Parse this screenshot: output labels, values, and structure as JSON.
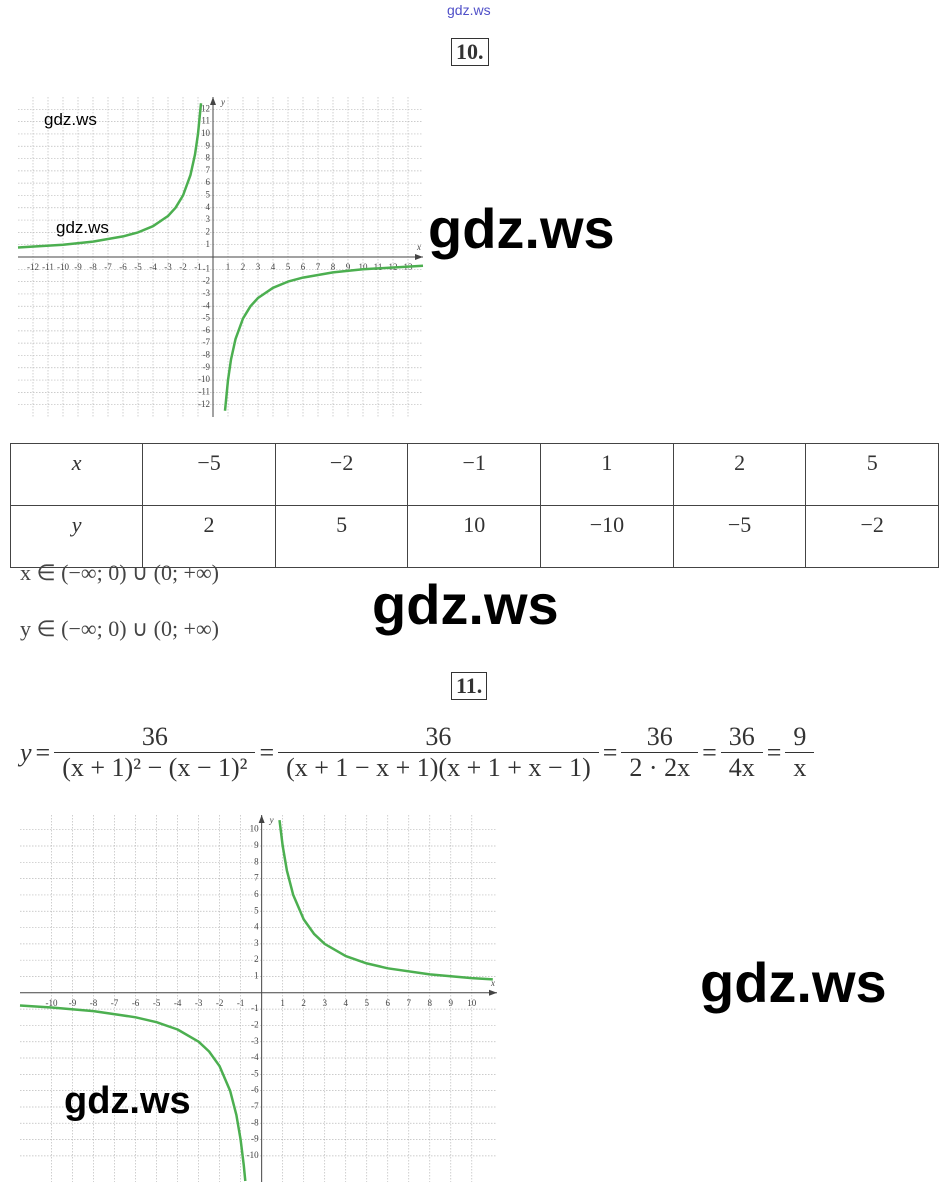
{
  "header": {
    "site": "gdz.ws"
  },
  "watermarks": [
    "gdz.ws",
    "gdz.ws",
    "gdz.ws",
    "gdz.ws",
    "gdz.ws",
    "gdz.ws"
  ],
  "task10": {
    "number": "10.",
    "graph": {
      "x_label": "x",
      "y_label": "y",
      "xlim": [
        -13,
        14
      ],
      "ylim": [
        -13,
        13
      ],
      "xticks": [
        -12,
        -11,
        -10,
        -9,
        -8,
        -7,
        -6,
        -5,
        -4,
        -3,
        -2,
        -1,
        1,
        2,
        3,
        4,
        5,
        6,
        7,
        8,
        9,
        10,
        11,
        12,
        13
      ],
      "yticks": [
        -12,
        -11,
        -10,
        -9,
        -8,
        -7,
        -6,
        -5,
        -4,
        -3,
        -2,
        -1,
        1,
        2,
        3,
        4,
        5,
        6,
        7,
        8,
        9,
        10,
        11,
        12
      ],
      "color": "#4caf50",
      "branches": [
        {
          "x": [
            -13,
            -10,
            -8,
            -6,
            -5,
            -4,
            -3,
            -2.5,
            -2,
            -1.5,
            -1.2,
            -1,
            -0.8
          ],
          "y": [
            0.77,
            1,
            1.25,
            1.67,
            2,
            2.5,
            3.33,
            4,
            5,
            6.67,
            8.33,
            10,
            12.5
          ]
        },
        {
          "x": [
            0.8,
            1,
            1.2,
            1.5,
            2,
            2.5,
            3,
            4,
            5,
            6,
            8,
            10,
            14
          ],
          "y": [
            -12.5,
            -10,
            -8.33,
            -6.67,
            -5,
            -4,
            -3.33,
            -2.5,
            -2,
            -1.67,
            -1.25,
            -1,
            -0.71
          ]
        }
      ]
    },
    "table": {
      "rows": [
        [
          "x",
          "−5",
          "−2",
          "−1",
          "1",
          "2",
          "5"
        ],
        [
          "y",
          "2",
          "5",
          "10",
          "−10",
          "−5",
          "−2"
        ]
      ]
    },
    "domain": "x ∈ (−∞; 0) ∪ (0;  +∞)",
    "range": "y ∈ (−∞; 0) ∪ (0; +∞)"
  },
  "task11": {
    "number": "11.",
    "formula": {
      "lhs": "y",
      "equals": "=",
      "fractions": [
        {
          "num": "36",
          "den": "(x + 1)² − (x − 1)²"
        },
        {
          "num": "36",
          "den": "(x + 1 − x + 1)(x + 1 + x − 1)"
        },
        {
          "num": "36",
          "den": "2 · 2x"
        },
        {
          "num": "36",
          "den": "4x"
        },
        {
          "num": "9",
          "den": "x"
        }
      ]
    },
    "graph": {
      "x_label": "x",
      "y_label": "y",
      "xlim": [
        -11.5,
        11.2
      ],
      "ylim": [
        -11.6,
        10.9
      ],
      "xticks": [
        -10,
        -9,
        -8,
        -7,
        -6,
        -5,
        -4,
        -3,
        -2,
        -1,
        1,
        2,
        3,
        4,
        5,
        6,
        7,
        8,
        9,
        10
      ],
      "yticks": [
        -10,
        -9,
        -8,
        -7,
        -6,
        -5,
        -4,
        -3,
        -2,
        -1,
        1,
        2,
        3,
        4,
        5,
        6,
        7,
        8,
        9,
        10
      ],
      "color": "#4caf50",
      "branches": [
        {
          "x": [
            -11.5,
            -10,
            -8,
            -6,
            -5,
            -4,
            -3,
            -2.5,
            -2,
            -1.5,
            -1.2,
            -1,
            -0.85,
            -0.78
          ],
          "y": [
            -0.78,
            -0.9,
            -1.125,
            -1.5,
            -1.8,
            -2.25,
            -3,
            -3.6,
            -4.5,
            -6,
            -7.5,
            -9,
            -10.59,
            -11.54
          ]
        },
        {
          "x": [
            0.85,
            1,
            1.2,
            1.5,
            2,
            2.5,
            3,
            4,
            5,
            6,
            8,
            10,
            11
          ],
          "y": [
            10.59,
            9,
            7.5,
            6,
            4.5,
            3.6,
            3,
            2.25,
            1.8,
            1.5,
            1.125,
            0.9,
            0.82
          ]
        }
      ]
    }
  }
}
